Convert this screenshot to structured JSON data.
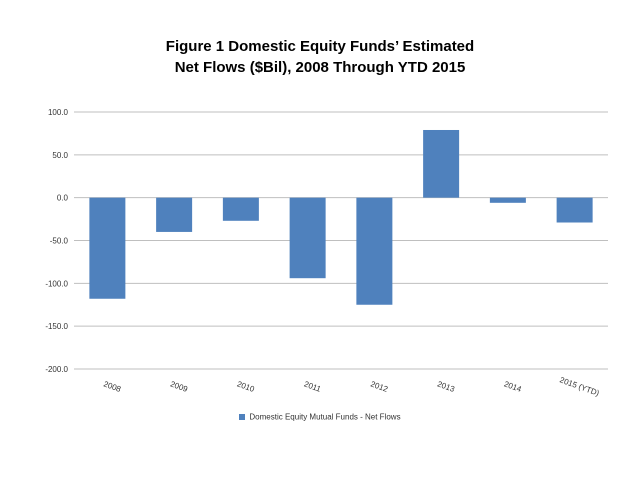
{
  "title": {
    "line1": "Figure 1  Domestic Equity Funds’ Estimated",
    "line2": "Net Flows ($Bil), 2008 Through YTD 2015"
  },
  "chart_data": {
    "type": "bar",
    "title": "Figure 1  Domestic Equity Funds’ Estimated Net Flows ($Bil), 2008 Through YTD 2015",
    "categories": [
      "2008",
      "2009",
      "2010",
      "2011",
      "2012",
      "2013",
      "2014",
      "2015 (YTD)"
    ],
    "series": [
      {
        "name": "Domestic Equity Mutual Funds - Net Flows",
        "values": [
          -118.0,
          -40.0,
          -27.0,
          -94.0,
          -125.0,
          79.0,
          -6.0,
          -29.0
        ]
      }
    ],
    "ylim": [
      -200,
      100
    ],
    "yticks": [
      "100.0",
      "50.0",
      "0.0",
      "-50.0",
      "-100.0",
      "-150.0",
      "-200.0"
    ],
    "grid": true,
    "legend_position": "bottom",
    "bar_color": "#4f81bd"
  }
}
